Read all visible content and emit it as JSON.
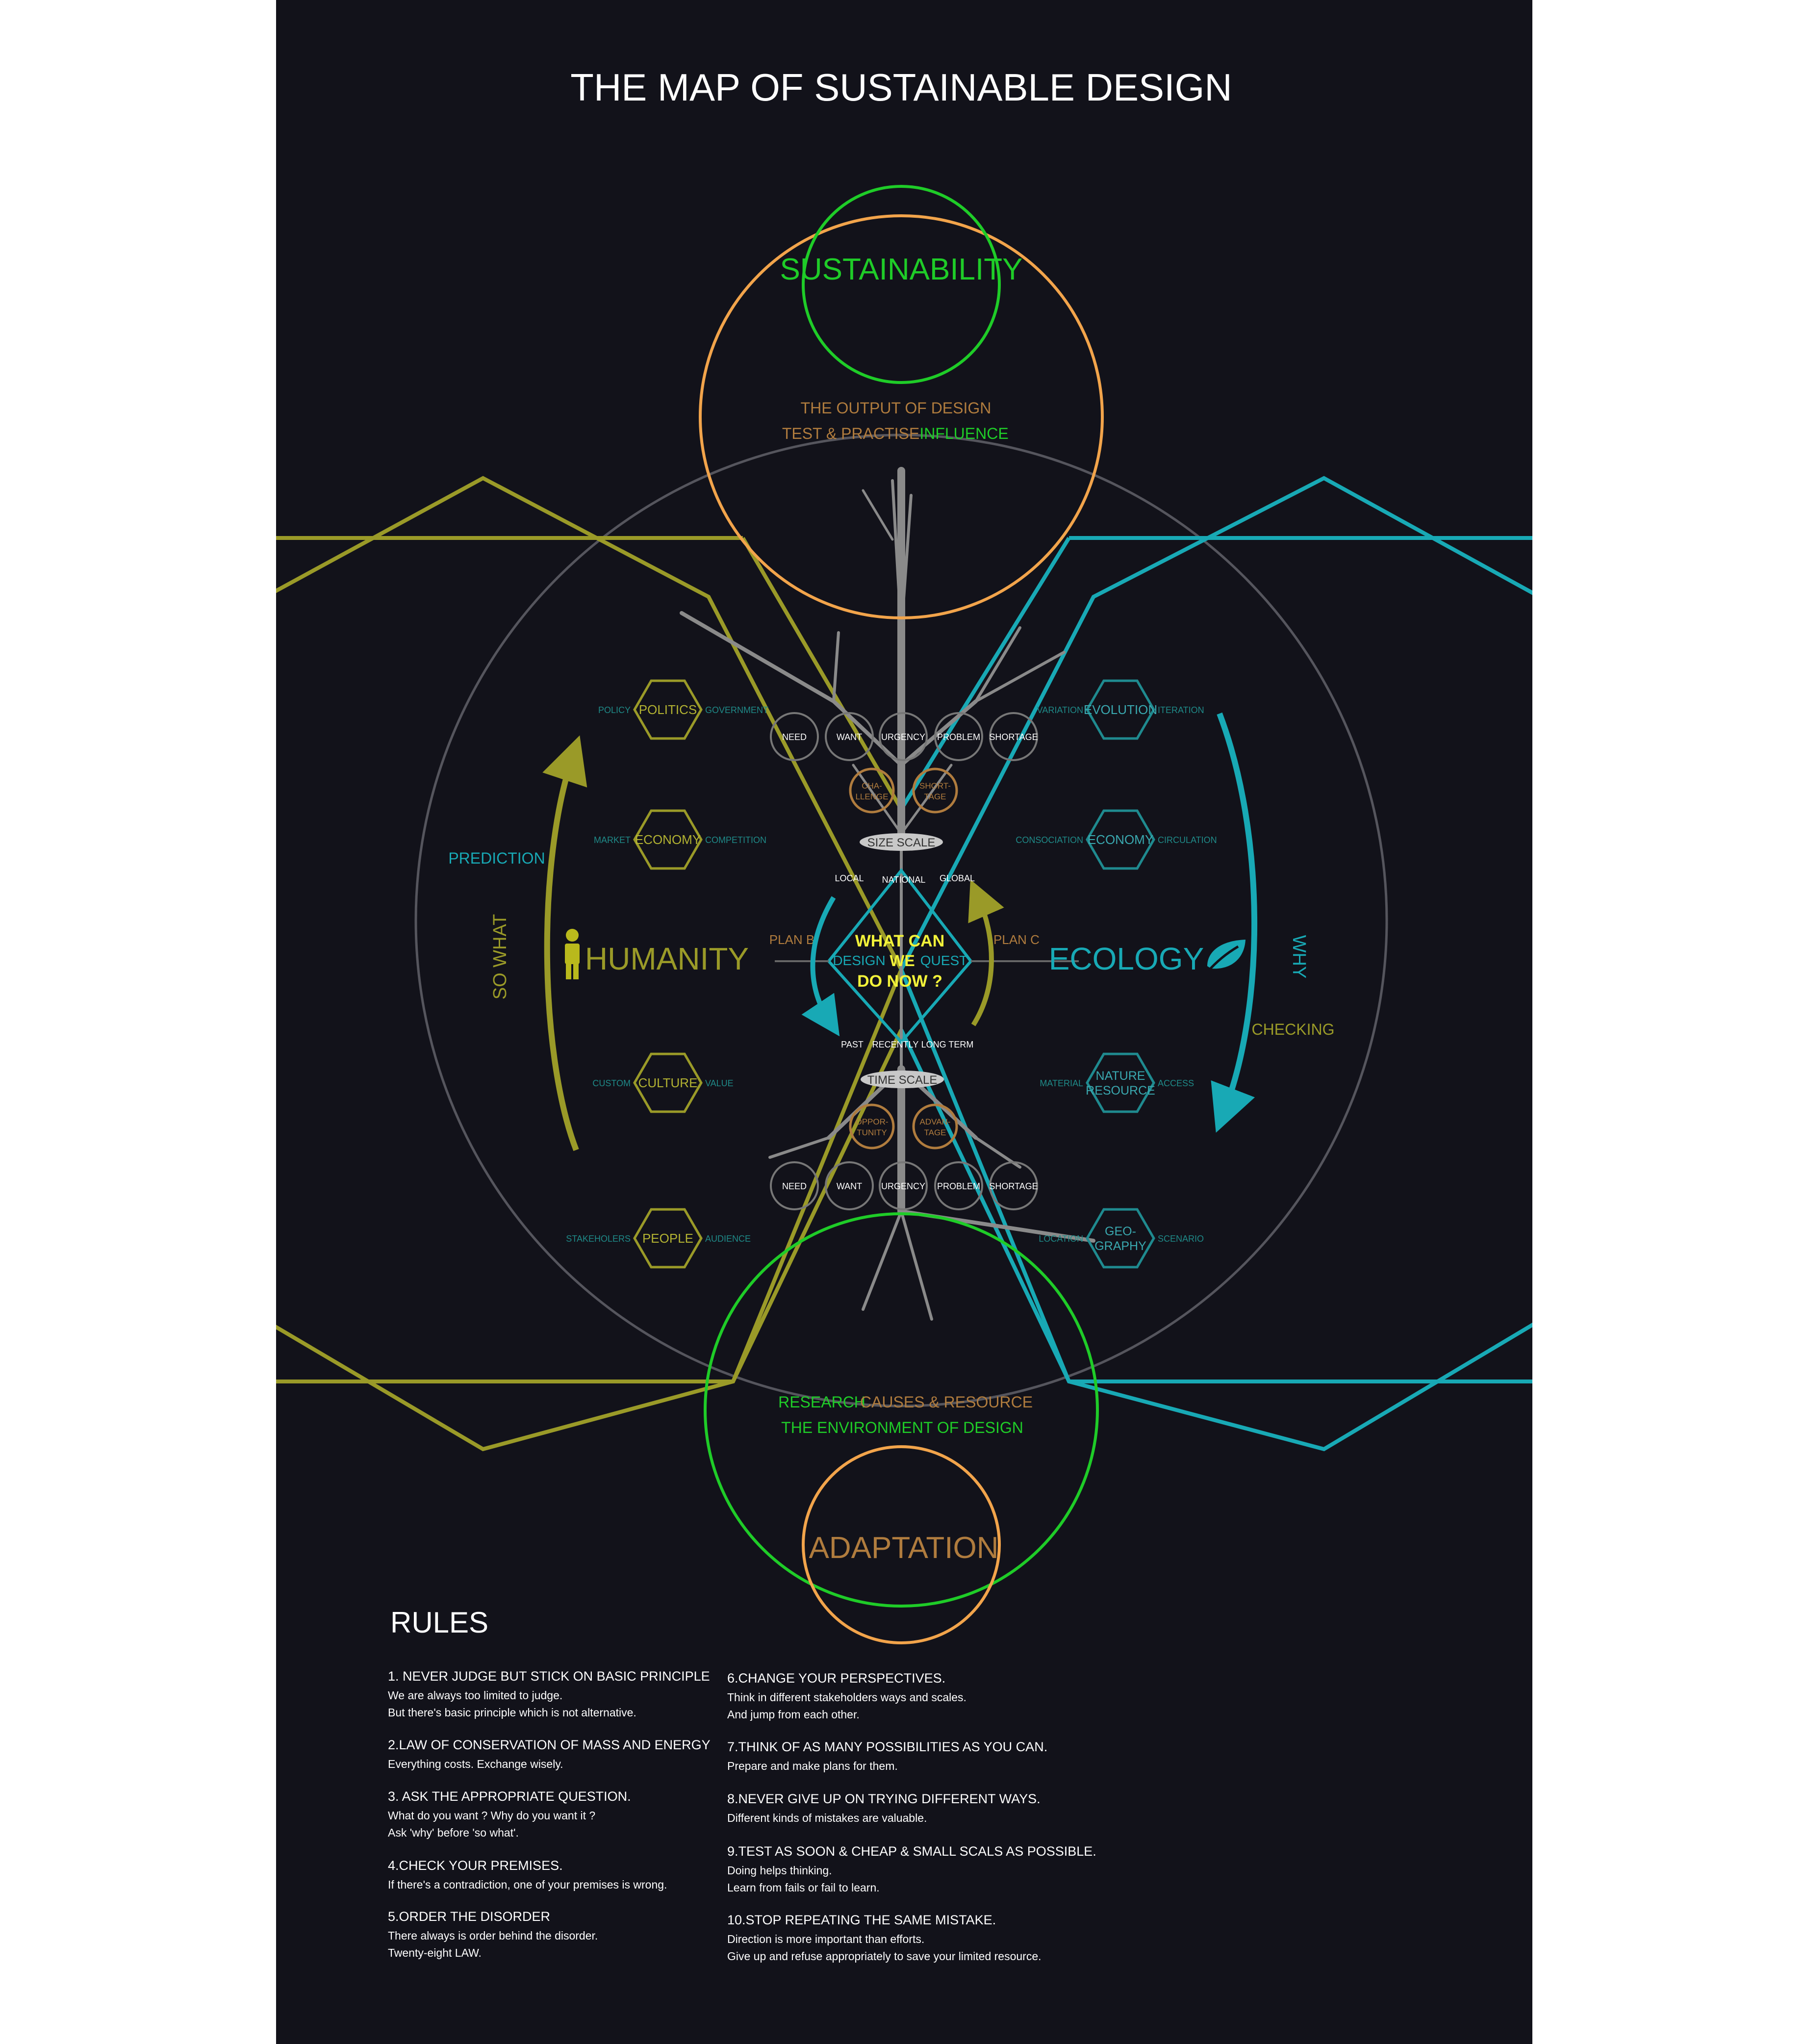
{
  "title": "THE MAP OF SUSTAINABLE DESIGN",
  "colors": {
    "background": "#12121a",
    "olive": "#9a9a28",
    "teal": "#18a9b5",
    "green": "#1fcc28",
    "orange": "#f2a44b",
    "brown": "#b07c3e",
    "gray": "#8a8a8a",
    "white": "#ffffff",
    "yellow": "#f2f23a"
  },
  "icons": {
    "person": "person-icon",
    "leaf": "leaf-icon"
  },
  "top": {
    "circle_label": "SUSTAINABILITY",
    "output": "THE OUTPUT OF DESIGN",
    "test": "TEST & PRACTISE",
    "influence": "INFLUENCE"
  },
  "bottom": {
    "research": "RESEARCH",
    "causes": "CAUSES & RESOURCE",
    "environment": "THE ENVIRONMENT OF DESIGN",
    "circle_label": "ADAPTATION"
  },
  "center": {
    "line1": "WHAT CAN",
    "design": "DESIGN",
    "we": "WE",
    "quest": "QUEST",
    "line3": "DO NOW ?",
    "plan_b": "PLAN B",
    "plan_c": "PLAN C",
    "size_scale": "SIZE SCALE",
    "size_labels": [
      "LOCAL",
      "NATIONAL",
      "GLOBAL"
    ],
    "time_scale": "TIME SCALE",
    "time_labels": [
      "PAST",
      "RECENTLY",
      "LONG TERM"
    ]
  },
  "humanity": {
    "label": "HUMANITY",
    "hexagons": [
      {
        "label": "POLITICS",
        "left": "POLICY",
        "right": "GOVERNMENT"
      },
      {
        "label": "ECONOMY",
        "left": "MARKET",
        "right": "COMPETITION"
      },
      {
        "label": "CULTURE",
        "left": "CUSTOM",
        "right": "VALUE"
      },
      {
        "label": "PEOPLE",
        "left": "STAKEHOLERS",
        "right": "AUDIENCE"
      }
    ],
    "prediction": "PREDICTION",
    "so_what": "SO WHAT"
  },
  "ecology": {
    "label": "ECOLOGY",
    "hexagons": [
      {
        "label": "EVOLUTION",
        "left": "VARIATION",
        "right": "ITERATION"
      },
      {
        "label": "ECONOMY",
        "left": "CONSOCIATION",
        "right": "CIRCULATION"
      },
      {
        "label": "NATURE",
        "label2": "RESOURCE",
        "left": "MATERIAL",
        "right": "ACCESS"
      },
      {
        "label": "GEO-",
        "label2": "GRAPHY",
        "left": "LOCATION",
        "right": "SCENARIO"
      }
    ],
    "why": "WHY",
    "checking": "CHECKING"
  },
  "need_row_top": [
    "NEED",
    "WANT",
    "URGENCY",
    "PROBLEM",
    "SHORTAGE"
  ],
  "need_row_bottom": [
    "NEED",
    "WANT",
    "URGENCY",
    "PROBLEM",
    "SHORTAGE"
  ],
  "small_top": [
    {
      "l1": "CHA-",
      "l2": "LLENGE"
    },
    {
      "l1": "SHORT-",
      "l2": "TAGE"
    }
  ],
  "small_bottom": [
    {
      "l1": "OPPOR-",
      "l2": "TUNITY"
    },
    {
      "l1": "ADVAN-",
      "l2": "TAGE"
    }
  ],
  "rules": {
    "heading": "RULES",
    "items": [
      {
        "title": "1. NEVER JUDGE BUT STICK ON BASIC PRINCIPLE",
        "lines": [
          "We are always too limited to judge.",
          "But there's basic principle which is not alternative."
        ]
      },
      {
        "title": "2.LAW OF CONSERVATION OF MASS AND ENERGY",
        "lines": [
          "Everything costs. Exchange wisely."
        ]
      },
      {
        "title": "3. ASK THE APPROPRIATE QUESTION.",
        "lines": [
          "What do you want ?  Why do you want it ?",
          "Ask 'why' before 'so what'."
        ]
      },
      {
        "title": "4.CHECK YOUR PREMISES.",
        "lines": [
          "If there's a contradiction, one of your premises is wrong."
        ]
      },
      {
        "title": "5.ORDER THE DISORDER",
        "lines": [
          "There always is order behind the disorder.",
          "Twenty-eight LAW."
        ]
      },
      {
        "title": "6.CHANGE YOUR PERSPECTIVES.",
        "lines": [
          "Think in different stakeholders ways and scales.",
          "And jump from each other."
        ]
      },
      {
        "title": "7.THINK OF AS MANY POSSIBILITIES AS YOU CAN.",
        "lines": [
          "Prepare and make plans for them."
        ]
      },
      {
        "title": "8.NEVER GIVE UP ON TRYING DIFFERENT WAYS.",
        "lines": [
          "Different kinds of mistakes are valuable."
        ]
      },
      {
        "title": "9.TEST AS SOON & CHEAP & SMALL SCALS AS POSSIBLE.",
        "lines": [
          "Doing helps thinking.",
          "Learn from fails or fail to learn."
        ]
      },
      {
        "title": "10.STOP REPEATING THE SAME MISTAKE.",
        "lines": [
          "Direction is more important than efforts.",
          "Give up and refuse appropriately to save your limited resource."
        ]
      }
    ]
  }
}
